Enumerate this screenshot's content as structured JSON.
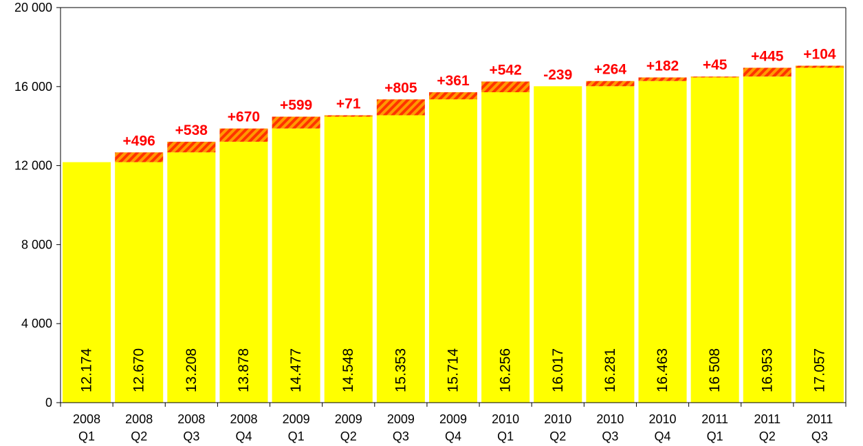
{
  "chart_data": {
    "type": "bar",
    "stacked_increment": true,
    "categories": [
      [
        "2008",
        "Q1"
      ],
      [
        "2008",
        "Q2"
      ],
      [
        "2008",
        "Q3"
      ],
      [
        "2008",
        "Q4"
      ],
      [
        "2009",
        "Q1"
      ],
      [
        "2009",
        "Q2"
      ],
      [
        "2009",
        "Q3"
      ],
      [
        "2009",
        "Q4"
      ],
      [
        "2010",
        "Q1"
      ],
      [
        "2010",
        "Q2"
      ],
      [
        "2010",
        "Q3"
      ],
      [
        "2010",
        "Q4"
      ],
      [
        "2011",
        "Q1"
      ],
      [
        "2011",
        "Q2"
      ],
      [
        "2011",
        "Q3"
      ]
    ],
    "values": [
      12174,
      12670,
      13208,
      13878,
      14477,
      14548,
      15353,
      15714,
      16256,
      16017,
      16281,
      16463,
      16508,
      16953,
      17057
    ],
    "value_labels": [
      "12.174",
      "12.670",
      "13.208",
      "13.878",
      "14.477",
      "14.548",
      "15.353",
      "15.714",
      "16.256",
      "16.017",
      "16.281",
      "16.463",
      "16 508",
      "16.953",
      "17.057"
    ],
    "delta_labels": [
      "",
      "+496",
      "+538",
      "+670",
      "+599",
      "+71",
      "+805",
      "+361",
      "+542",
      "-239",
      "+264",
      "+182",
      "+45",
      "+445",
      "+104"
    ],
    "yticks": [
      0,
      4000,
      8000,
      12000,
      16000,
      20000
    ],
    "ytick_labels": [
      "0",
      "4 000",
      "8 000",
      "12 000",
      "16 000",
      "20 000"
    ],
    "ylim": [
      0,
      20000
    ],
    "grid": false,
    "title": "",
    "xlabel": "",
    "ylabel": "",
    "colors": {
      "bar": "#ffff00",
      "increment_stripe_a": "#ff9900",
      "increment_stripe_b": "#ff3300",
      "delta_text": "#ff0000",
      "axis": "#000000"
    }
  }
}
